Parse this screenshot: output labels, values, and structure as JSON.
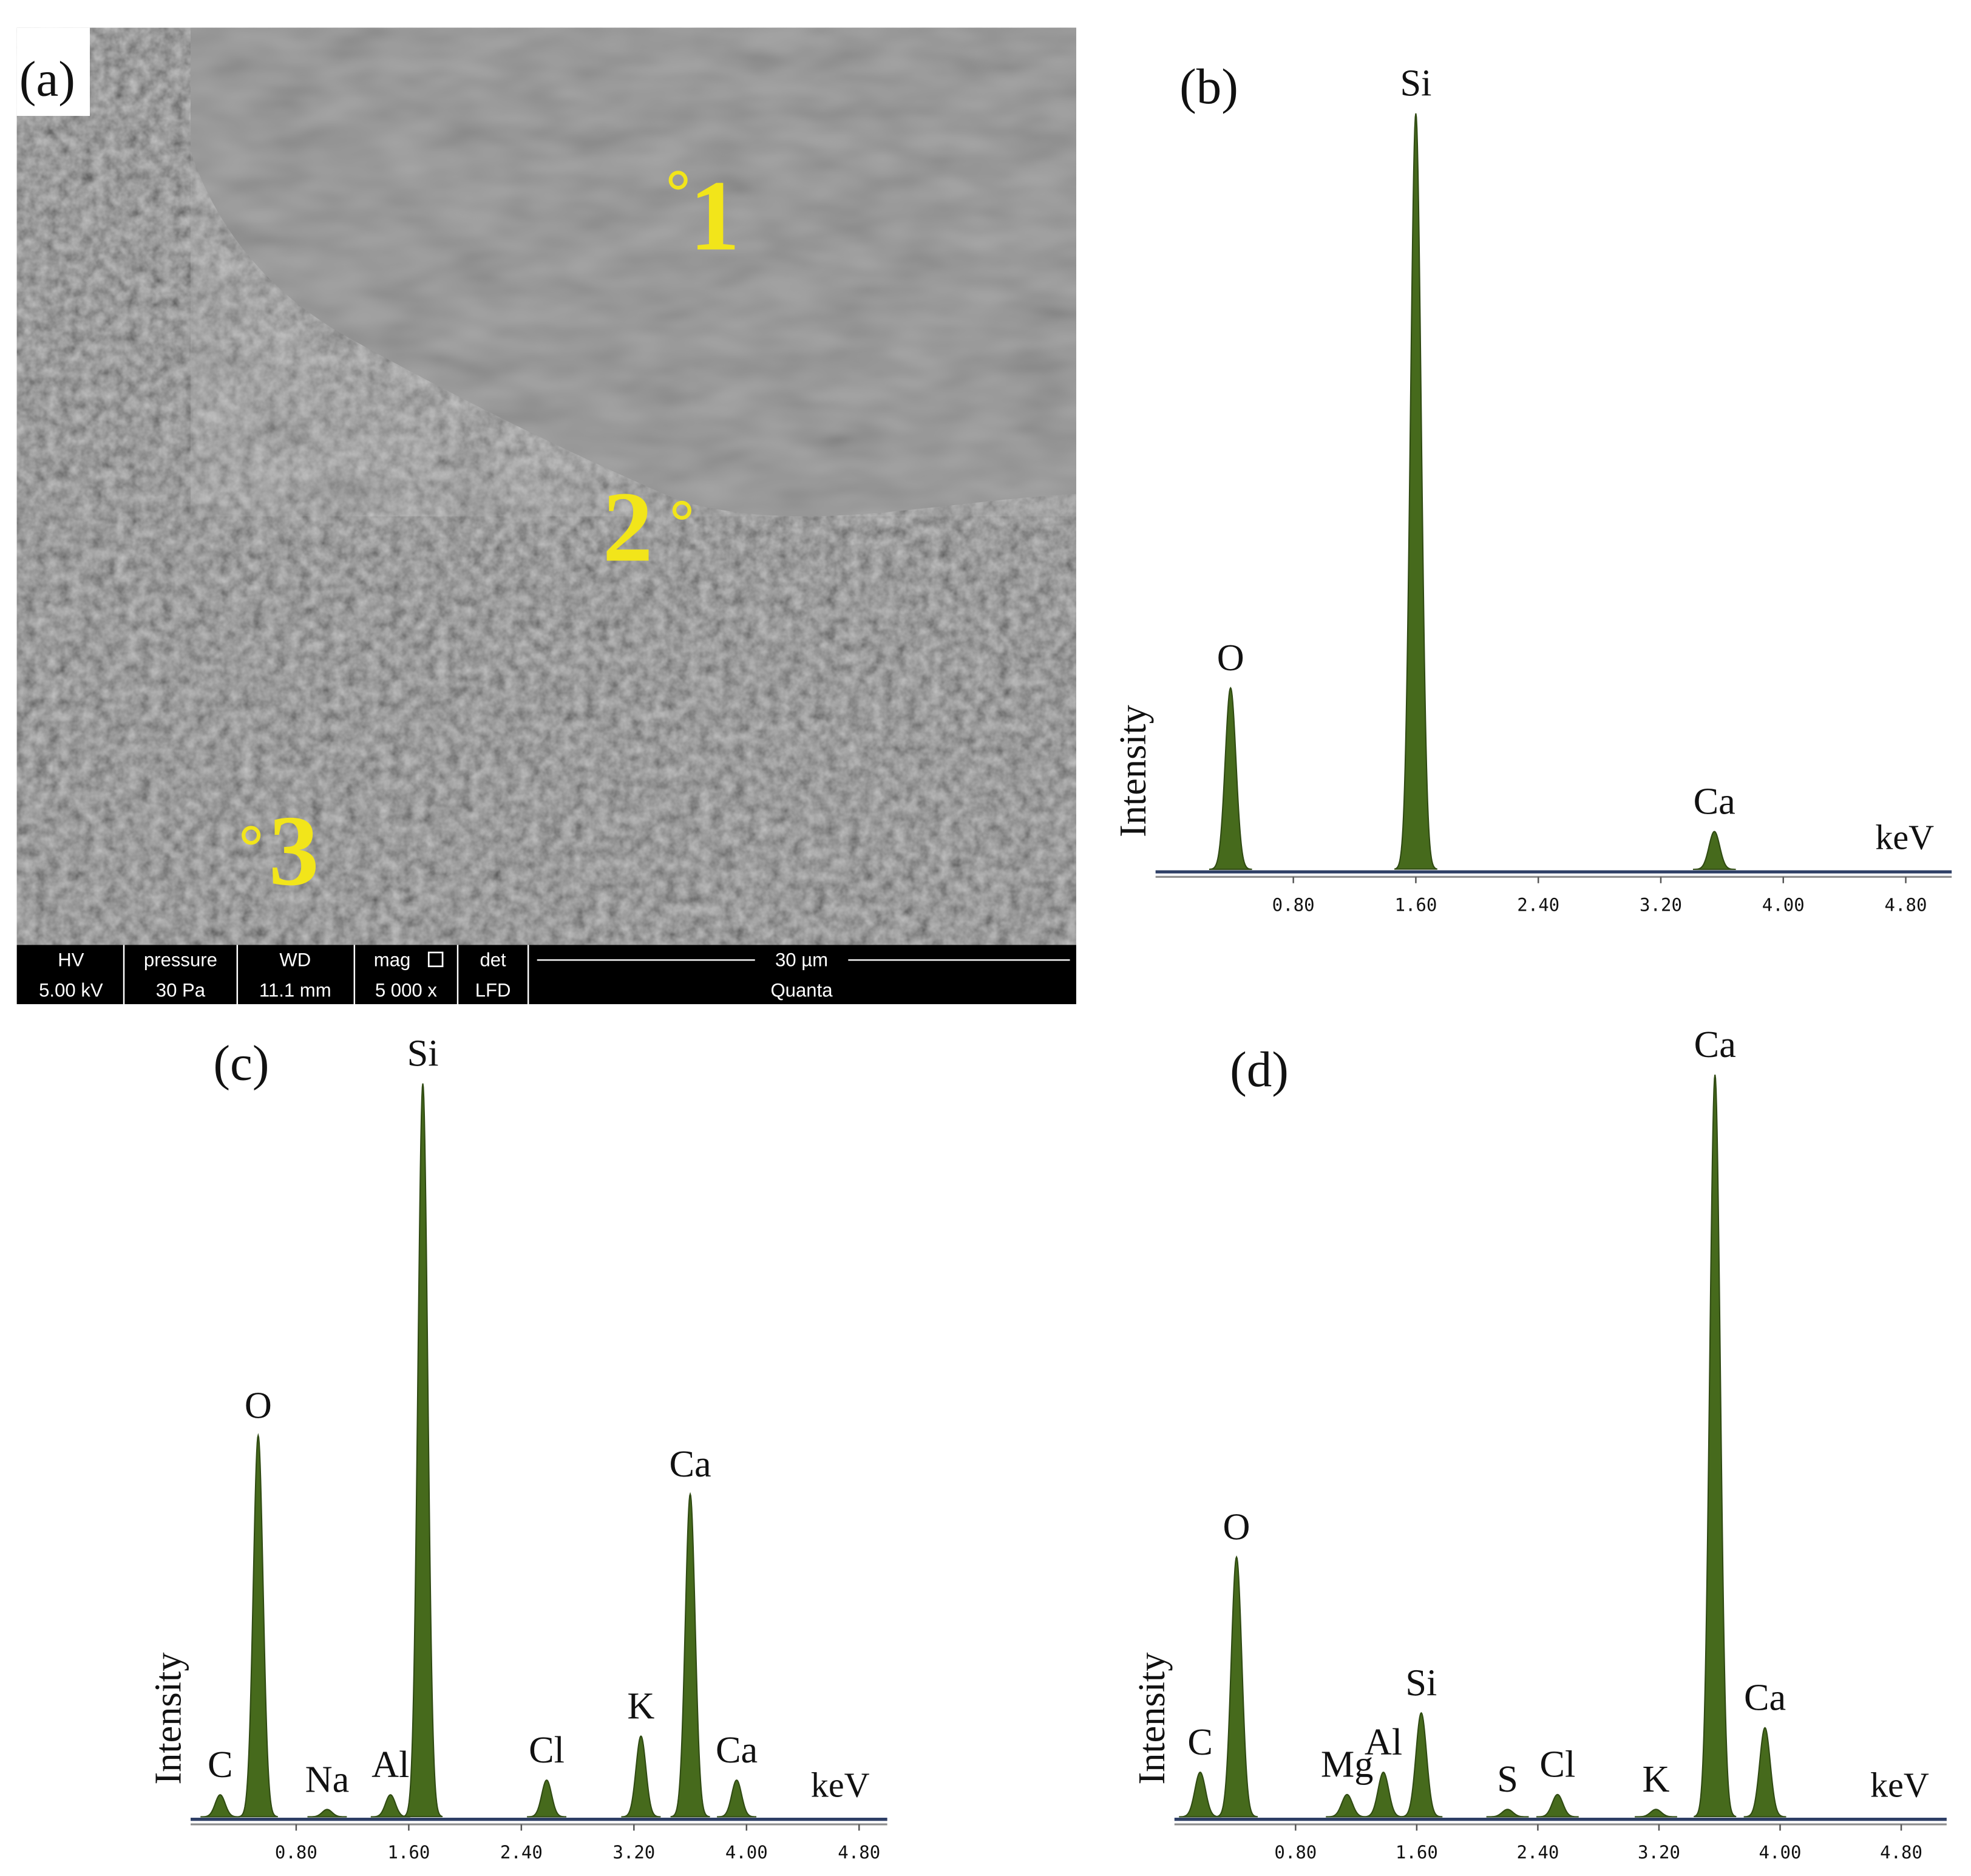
{
  "image_panel": {
    "label": "(a)",
    "points": [
      "1",
      "2",
      "3"
    ],
    "info_bar": {
      "headers": [
        "HV",
        "pressure",
        "WD",
        "mag",
        "det"
      ],
      "values": [
        "5.00 kV",
        "30 Pa",
        "11.1 mm",
        "5 000 x",
        "LFD"
      ],
      "scale": "30 µm",
      "instrument": "Quanta"
    }
  },
  "chart_data": [
    {
      "type": "spectrum",
      "title": "(b)",
      "y_label": "Intensity",
      "x_label": "keV",
      "categories": [
        "O",
        "Si",
        "Ca"
      ],
      "x": [
        0.39,
        1.6,
        3.55
      ],
      "values": [
        24,
        100,
        5
      ],
      "xlim": [
        -0.1,
        5.1
      ],
      "ylim": [
        0,
        100
      ],
      "xticks": [
        {
          "value": 0.8,
          "label": "0.80"
        },
        {
          "value": 1.6,
          "label": "1.60"
        },
        {
          "value": 2.4,
          "label": "2.40"
        },
        {
          "value": 3.2,
          "label": "3.20"
        },
        {
          "value": 4.0,
          "label": "4.00"
        },
        {
          "value": 4.8,
          "label": "4.80"
        }
      ],
      "color": "#466a1c",
      "axis_color": "#2e3f66"
    },
    {
      "type": "spectrum",
      "title": "(c)",
      "y_label": "Intensity",
      "x_label": "keV",
      "categories": [
        "C",
        "O",
        "Na",
        "Al",
        "Si",
        "Cl",
        "K",
        "Ca",
        "Ca"
      ],
      "x": [
        0.26,
        0.53,
        1.02,
        1.47,
        1.7,
        2.58,
        3.25,
        3.6,
        3.93
      ],
      "values": [
        3,
        52,
        1,
        3,
        100,
        5,
        11,
        44,
        5
      ],
      "xlim": [
        0.05,
        5.0
      ],
      "ylim": [
        0,
        100
      ],
      "xticks": [
        {
          "value": 0.8,
          "label": "0.80"
        },
        {
          "value": 1.6,
          "label": "1.60"
        },
        {
          "value": 2.4,
          "label": "2.40"
        },
        {
          "value": 3.2,
          "label": "3.20"
        },
        {
          "value": 4.0,
          "label": "4.00"
        },
        {
          "value": 4.8,
          "label": "4.80"
        }
      ],
      "color": "#466a1c",
      "axis_color": "#2e3f66"
    },
    {
      "type": "spectrum",
      "title": "(d)",
      "y_label": "Intensity",
      "x_label": "keV",
      "categories": [
        "C",
        "O",
        "Mg",
        "Al",
        "Si",
        "S",
        "Cl",
        "K",
        "Ca",
        "Ca"
      ],
      "x": [
        0.17,
        0.41,
        1.14,
        1.38,
        1.63,
        2.2,
        2.53,
        3.18,
        3.57,
        3.9
      ],
      "values": [
        6,
        35,
        3,
        6,
        14,
        1,
        3,
        1,
        100,
        12
      ],
      "xlim": [
        0,
        5.1
      ],
      "ylim": [
        0,
        100
      ],
      "xticks": [
        {
          "value": 0.8,
          "label": "0.80"
        },
        {
          "value": 1.6,
          "label": "1.60"
        },
        {
          "value": 2.4,
          "label": "2.40"
        },
        {
          "value": 3.2,
          "label": "3.20"
        },
        {
          "value": 4.0,
          "label": "4.00"
        },
        {
          "value": 4.8,
          "label": "4.80"
        }
      ],
      "color": "#466a1c",
      "axis_color": "#2e3f66"
    }
  ]
}
